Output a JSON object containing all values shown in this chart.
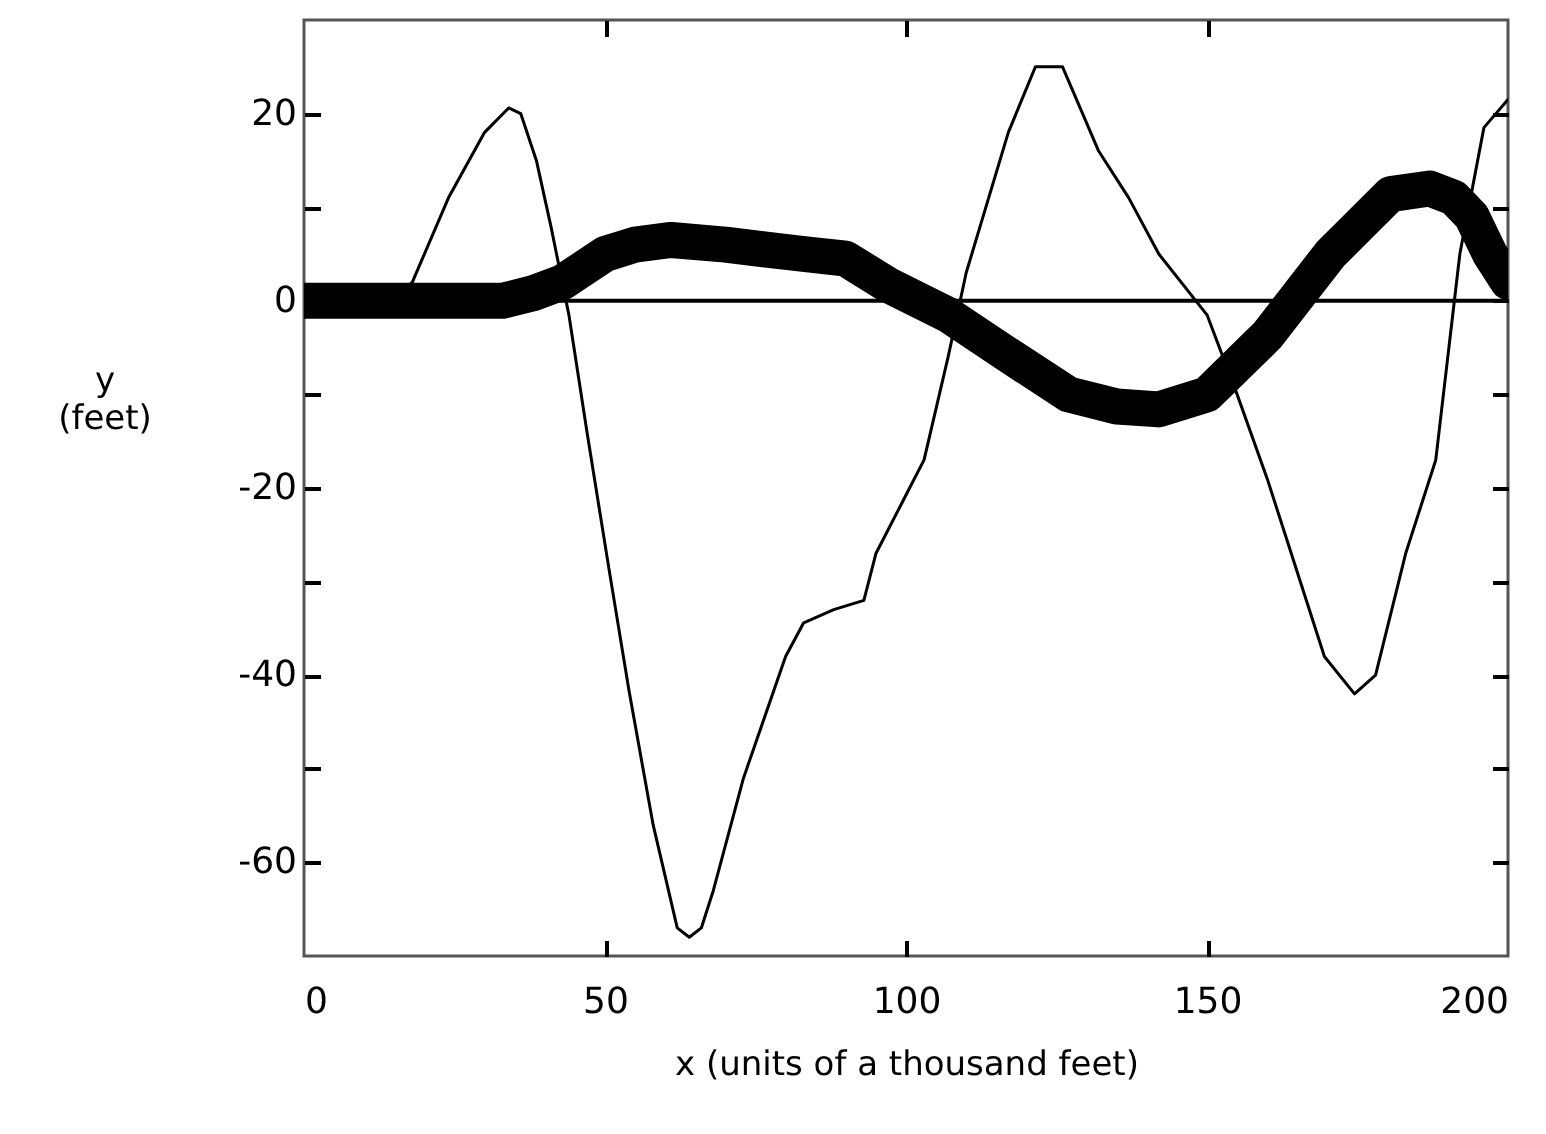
{
  "chart_data": {
    "type": "line",
    "xlabel": "x (units of a thousand feet)",
    "ylabel": "y\n(feet)",
    "xlim": [
      0,
      200
    ],
    "xticks": [
      0,
      50,
      100,
      150,
      200
    ],
    "ylim": [
      -70,
      30
    ],
    "yticks": [
      -60,
      {
        "value": -50,
        "label": null
      },
      -40,
      {
        "value": -30,
        "label": null
      },
      -20,
      {
        "value": -10,
        "label": null
      },
      0,
      {
        "value": 10,
        "label": null
      },
      20
    ],
    "ref_lines": [
      {
        "axis": "y",
        "value": 0,
        "color": "#000000"
      }
    ],
    "series": [
      {
        "color": "#000000",
        "x": [
          0,
          15,
          18,
          24,
          30,
          34,
          36,
          38.6,
          41,
          44,
          47,
          50.7,
          54,
          58,
          62,
          64,
          66,
          68,
          73,
          80,
          83,
          88,
          93,
          95,
          99,
          103,
          107,
          110,
          117,
          121.5,
          126,
          128,
          132,
          137,
          142,
          150,
          155,
          160,
          164,
          169.5,
          174.5,
          178,
          183,
          188,
          192,
          196,
          200
        ],
        "values": [
          0,
          0,
          2,
          11,
          18,
          20.6,
          20,
          15,
          8,
          -1.5,
          -14,
          -28.8,
          -41.7,
          -56,
          -67,
          -68,
          -67,
          -63,
          -51,
          -38,
          -34.4,
          -33,
          -32,
          -27,
          -22,
          -17,
          -6,
          3,
          18,
          25,
          25,
          22,
          16,
          11,
          5,
          -1.5,
          -10,
          -19,
          -27,
          -38,
          -42,
          -40,
          -27,
          -17,
          5,
          18.5,
          21.5
        ]
      },
      {
        "color": "#000000",
        "x": [
          0,
          10,
          20,
          30,
          33,
          38,
          43,
          50,
          55,
          61,
          70,
          83,
          90,
          97,
          107,
          117,
          127,
          135,
          142,
          150,
          160,
          170.5,
          180.5,
          187,
          191,
          194,
          197,
          200
        ],
        "values": [
          0,
          0,
          0,
          0,
          0,
          0.8,
          2,
          5,
          6,
          6.5,
          6,
          5,
          4.5,
          1.7,
          -1.5,
          -5.8,
          -10,
          -11.3,
          -11.6,
          -10,
          -3.7,
          5,
          11.4,
          12,
          11,
          9,
          5,
          2
        ]
      }
    ]
  }
}
